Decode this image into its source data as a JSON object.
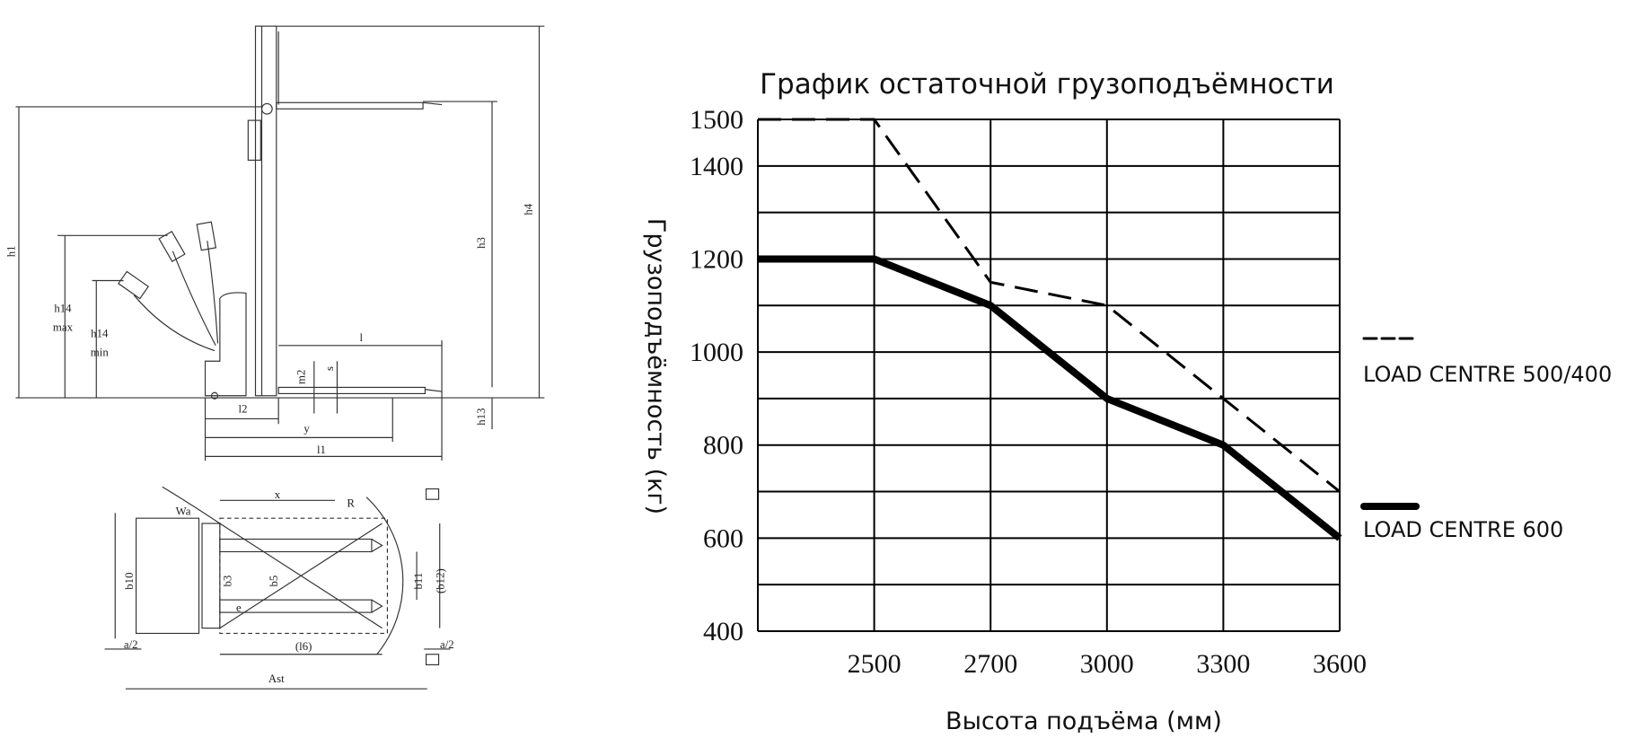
{
  "drawing": {
    "labels": [
      "h1",
      "h14",
      "max",
      "h14",
      "min",
      "h3",
      "h4",
      "l",
      "m2",
      "s",
      "l2",
      "y",
      "l1",
      "h13",
      "x",
      "Wa",
      "R",
      "b10",
      "b3",
      "b5",
      "b11",
      "(b12)",
      "e",
      "a/2",
      "(l6)",
      "a/2",
      "Ast"
    ]
  },
  "chart_data": {
    "type": "line",
    "title": "График остаточной грузоподъёмности",
    "y_label": "Грузоподъёмность (кг)",
    "x_label": "Высота подъёма (мм)",
    "categories": [
      null,
      "2500",
      "2700",
      "3000",
      "3300",
      "3600"
    ],
    "ylim": [
      400,
      1500
    ],
    "yticks": [
      400,
      600,
      800,
      1000,
      1200,
      1400,
      1500
    ],
    "ygrid": [
      500,
      700,
      900,
      1100,
      1300
    ],
    "grid": true,
    "legend": "right",
    "series": [
      {
        "name": "LOAD CENTRE 500/400",
        "color": "#000000",
        "linestyle": "dashed",
        "values": [
          1500,
          1500,
          1150,
          1100,
          900,
          700
        ]
      },
      {
        "name": "LOAD CENTRE 600",
        "color": "#000000",
        "linestyle": "solid",
        "values": [
          1200,
          1200,
          1100,
          900,
          800,
          600
        ]
      }
    ]
  }
}
